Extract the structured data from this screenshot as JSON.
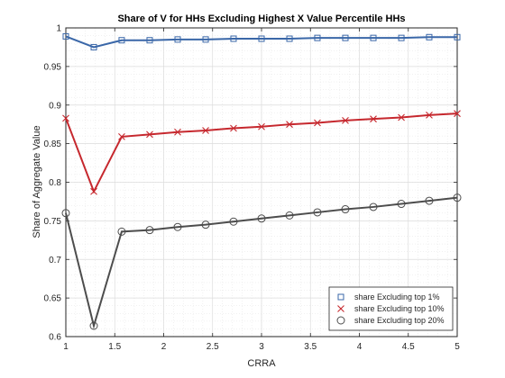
{
  "chart_data": {
    "type": "line",
    "title": "Share of V for HHs Excluding Highest X Value Percentile HHs",
    "xlabel": "CRRA",
    "ylabel": "Share of Aggregate Value",
    "xlim": [
      1,
      5
    ],
    "ylim": [
      0.6,
      1
    ],
    "xticks": [
      1,
      1.5,
      2,
      2.5,
      3,
      3.5,
      4,
      4.5,
      5
    ],
    "xtick_labels": [
      "1",
      "1.5",
      "2",
      "2.5",
      "3",
      "3.5",
      "4",
      "4.5",
      "5"
    ],
    "yticks": [
      0.6,
      0.65,
      0.7,
      0.75,
      0.8,
      0.85,
      0.9,
      0.95,
      1
    ],
    "ytick_labels": [
      "0.6",
      "0.65",
      "0.7",
      "0.75",
      "0.8",
      "0.85",
      "0.9",
      "0.95",
      "1"
    ],
    "grid": true,
    "legend_position": "bottom-right",
    "x": [
      1,
      1.286,
      1.571,
      1.857,
      2.143,
      2.429,
      2.714,
      3,
      3.286,
      3.571,
      3.857,
      4.143,
      4.429,
      4.714,
      5
    ],
    "series": [
      {
        "name": "share Excluding top 1%",
        "color": "#3a67a8",
        "marker": "square",
        "values": [
          0.989,
          0.975,
          0.984,
          0.984,
          0.985,
          0.985,
          0.986,
          0.986,
          0.986,
          0.987,
          0.987,
          0.987,
          0.987,
          0.988,
          0.988
        ]
      },
      {
        "name": "share Excluding top 10%",
        "color": "#c6282e",
        "marker": "x",
        "values": [
          0.883,
          0.788,
          0.859,
          0.862,
          0.865,
          0.867,
          0.87,
          0.872,
          0.875,
          0.877,
          0.88,
          0.882,
          0.884,
          0.887,
          0.889
        ]
      },
      {
        "name": "share Excluding top 20%",
        "color": "#4d4d4d",
        "marker": "circle",
        "values": [
          0.76,
          0.614,
          0.736,
          0.738,
          0.742,
          0.745,
          0.749,
          0.753,
          0.757,
          0.761,
          0.765,
          0.768,
          0.772,
          0.776,
          0.78
        ]
      }
    ]
  }
}
